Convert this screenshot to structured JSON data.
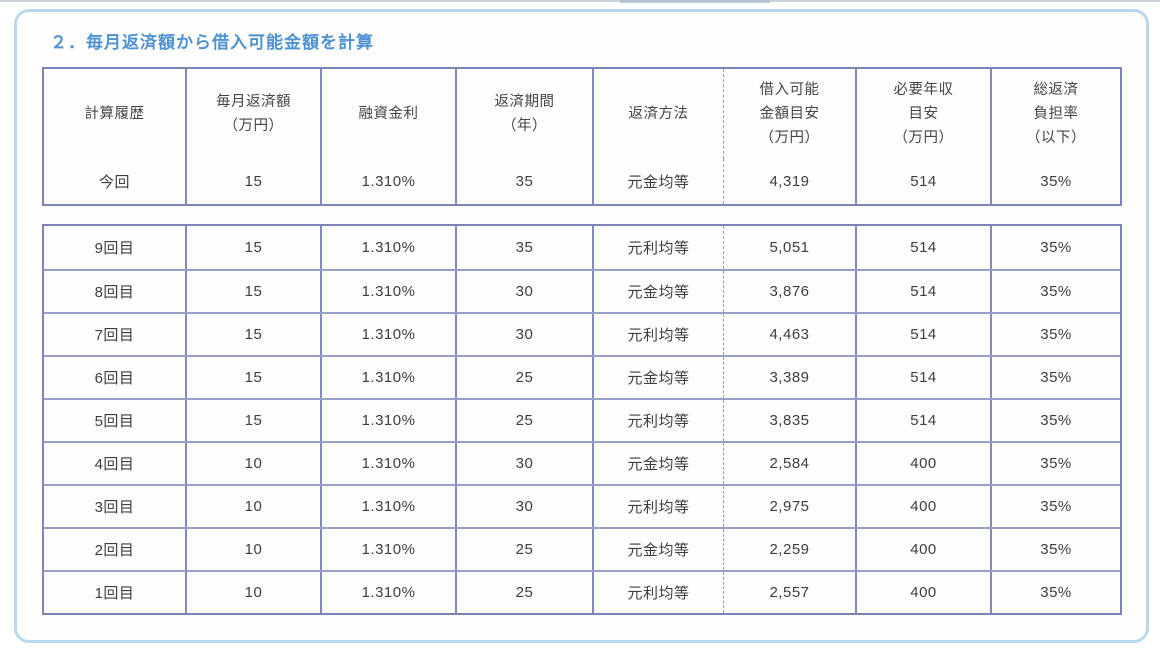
{
  "title": "２．毎月返済額から借入可能金額を計算",
  "table": {
    "headers": [
      {
        "key": "calc-history",
        "lines": [
          "計算履歴"
        ]
      },
      {
        "key": "monthly-repayment",
        "lines": [
          "毎月返済額",
          "（万円）"
        ]
      },
      {
        "key": "loan-rate",
        "lines": [
          "融資金利"
        ]
      },
      {
        "key": "repayment-period",
        "lines": [
          "返済期間",
          "（年）"
        ]
      },
      {
        "key": "repayment-method",
        "lines": [
          "返済方法"
        ]
      },
      {
        "key": "borrowable-amount",
        "lines": [
          "借入可能",
          "金額目安",
          "（万円）"
        ]
      },
      {
        "key": "required-income",
        "lines": [
          "必要年収",
          "目安",
          "（万円）"
        ]
      },
      {
        "key": "burden-ratio",
        "lines": [
          "総返済",
          "負担率",
          "（以下）"
        ]
      }
    ],
    "current_rows": [
      {
        "cells": [
          "今回",
          "15",
          "1.310%",
          "35",
          "元金均等",
          "4,319",
          "514",
          "35%"
        ]
      }
    ],
    "history_rows": [
      {
        "cells": [
          "9回目",
          "15",
          "1.310%",
          "35",
          "元利均等",
          "5,051",
          "514",
          "35%"
        ]
      },
      {
        "cells": [
          "8回目",
          "15",
          "1.310%",
          "30",
          "元金均等",
          "3,876",
          "514",
          "35%"
        ]
      },
      {
        "cells": [
          "7回目",
          "15",
          "1.310%",
          "30",
          "元利均等",
          "4,463",
          "514",
          "35%"
        ]
      },
      {
        "cells": [
          "6回目",
          "15",
          "1.310%",
          "25",
          "元金均等",
          "3,389",
          "514",
          "35%"
        ]
      },
      {
        "cells": [
          "5回目",
          "15",
          "1.310%",
          "25",
          "元利均等",
          "3,835",
          "514",
          "35%"
        ]
      },
      {
        "cells": [
          "4回目",
          "10",
          "1.310%",
          "30",
          "元金均等",
          "2,584",
          "400",
          "35%"
        ]
      },
      {
        "cells": [
          "3回目",
          "10",
          "1.310%",
          "30",
          "元利均等",
          "2,975",
          "400",
          "35%"
        ]
      },
      {
        "cells": [
          "2回目",
          "10",
          "1.310%",
          "25",
          "元金均等",
          "2,259",
          "400",
          "35%"
        ]
      },
      {
        "cells": [
          "1回目",
          "10",
          "1.310%",
          "25",
          "元利均等",
          "2,557",
          "400",
          "35%"
        ]
      }
    ],
    "colors": {
      "title_blue": "#4f92d1",
      "grid_purple": "#7c84b6",
      "panel_border_blue": "#b9d8ee"
    }
  }
}
